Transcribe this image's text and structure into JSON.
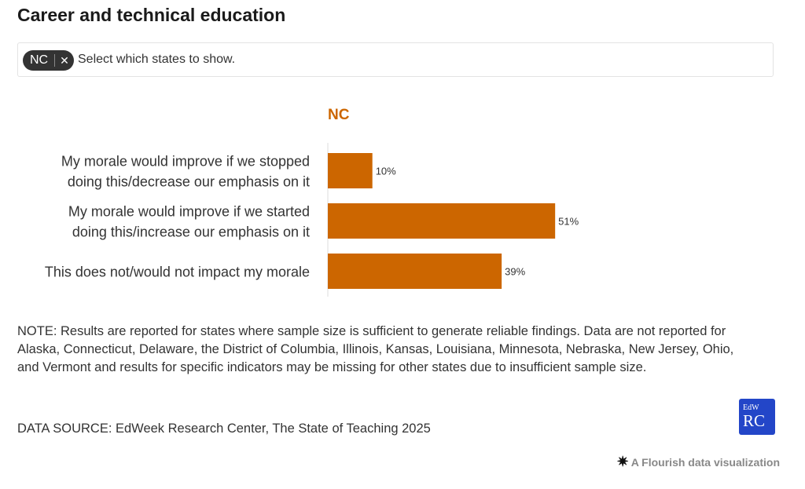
{
  "title": "Career and technical education",
  "filter": {
    "chip_label": "NC",
    "chip_close": "✕",
    "placeholder": "Select which states to show."
  },
  "chart_data": {
    "type": "bar",
    "orientation": "horizontal",
    "panel_title": "NC",
    "categories": [
      [
        "My morale would improve if we stopped",
        "doing this/decrease our emphasis on it"
      ],
      [
        "My morale would improve if we started",
        "doing this/increase our emphasis on it"
      ],
      [
        "This does not/would not impact my morale"
      ]
    ],
    "values": [
      10,
      51,
      39
    ],
    "value_labels": [
      "10%",
      "51%",
      "39%"
    ],
    "xlim": [
      0,
      100
    ],
    "bar_color": "#cc6600",
    "grid": false
  },
  "note": "NOTE: Results are reported for states where sample size is sufficient to generate reliable findings. Data are not reported for Alaska, Connecticut, Delaware, the District of Columbia, Illinois, Kansas, Louisiana, Minnesota, Nebraska, New Jersey, Ohio, and Vermont and results for specific indicators may be missing for other states due to insufficient sample size.",
  "source": "DATA SOURCE: EdWeek Research Center, The State of Teaching 2025",
  "logo": {
    "small": "EdW",
    "big": "RC",
    "color": "#2346c8"
  },
  "credit": {
    "star": "✷",
    "text": "A Flourish data visualization"
  }
}
